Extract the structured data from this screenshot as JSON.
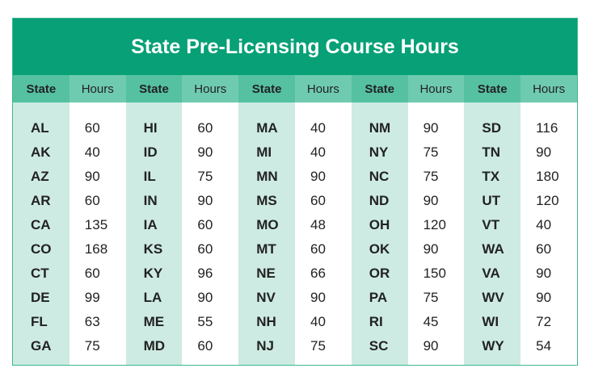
{
  "title": "State Pre-Licensing Course Hours",
  "headers": {
    "state": "State",
    "hours": "Hours"
  },
  "groups": [
    {
      "rows": [
        [
          "AL",
          "60"
        ],
        [
          "AK",
          "40"
        ],
        [
          "AZ",
          "90"
        ],
        [
          "AR",
          "60"
        ],
        [
          "CA",
          "135"
        ],
        [
          "CO",
          "168"
        ],
        [
          "CT",
          "60"
        ],
        [
          "DE",
          "99"
        ],
        [
          "FL",
          "63"
        ],
        [
          "GA",
          "75"
        ]
      ]
    },
    {
      "rows": [
        [
          "HI",
          "60"
        ],
        [
          "ID",
          "90"
        ],
        [
          "IL",
          "75"
        ],
        [
          "IN",
          "90"
        ],
        [
          "IA",
          "60"
        ],
        [
          "KS",
          "60"
        ],
        [
          "KY",
          "96"
        ],
        [
          "LA",
          "90"
        ],
        [
          "ME",
          "55"
        ],
        [
          "MD",
          "60"
        ]
      ]
    },
    {
      "rows": [
        [
          "MA",
          "40"
        ],
        [
          "MI",
          "40"
        ],
        [
          "MN",
          "90"
        ],
        [
          "MS",
          "60"
        ],
        [
          "MO",
          "48"
        ],
        [
          "MT",
          "60"
        ],
        [
          "NE",
          "66"
        ],
        [
          "NV",
          "90"
        ],
        [
          "NH",
          "40"
        ],
        [
          "NJ",
          "75"
        ]
      ]
    },
    {
      "rows": [
        [
          "NM",
          "90"
        ],
        [
          "NY",
          "75"
        ],
        [
          "NC",
          "75"
        ],
        [
          "ND",
          "90"
        ],
        [
          "OH",
          "120"
        ],
        [
          "OK",
          "90"
        ],
        [
          "OR",
          "150"
        ],
        [
          "PA",
          "75"
        ],
        [
          "RI",
          "45"
        ],
        [
          "SC",
          "90"
        ]
      ]
    },
    {
      "rows": [
        [
          "SD",
          "116"
        ],
        [
          "TN",
          "90"
        ],
        [
          "TX",
          "180"
        ],
        [
          "UT",
          "120"
        ],
        [
          "VT",
          "40"
        ],
        [
          "WA",
          "60"
        ],
        [
          "VA",
          "90"
        ],
        [
          "WV",
          "90"
        ],
        [
          "WI",
          "72"
        ],
        [
          "WY",
          "54"
        ]
      ]
    }
  ],
  "colors": {
    "title_bg": "#07a077",
    "state_header": "#55c1a1",
    "hours_header": "#6fcbaf",
    "state_col": "#cdebe2"
  }
}
